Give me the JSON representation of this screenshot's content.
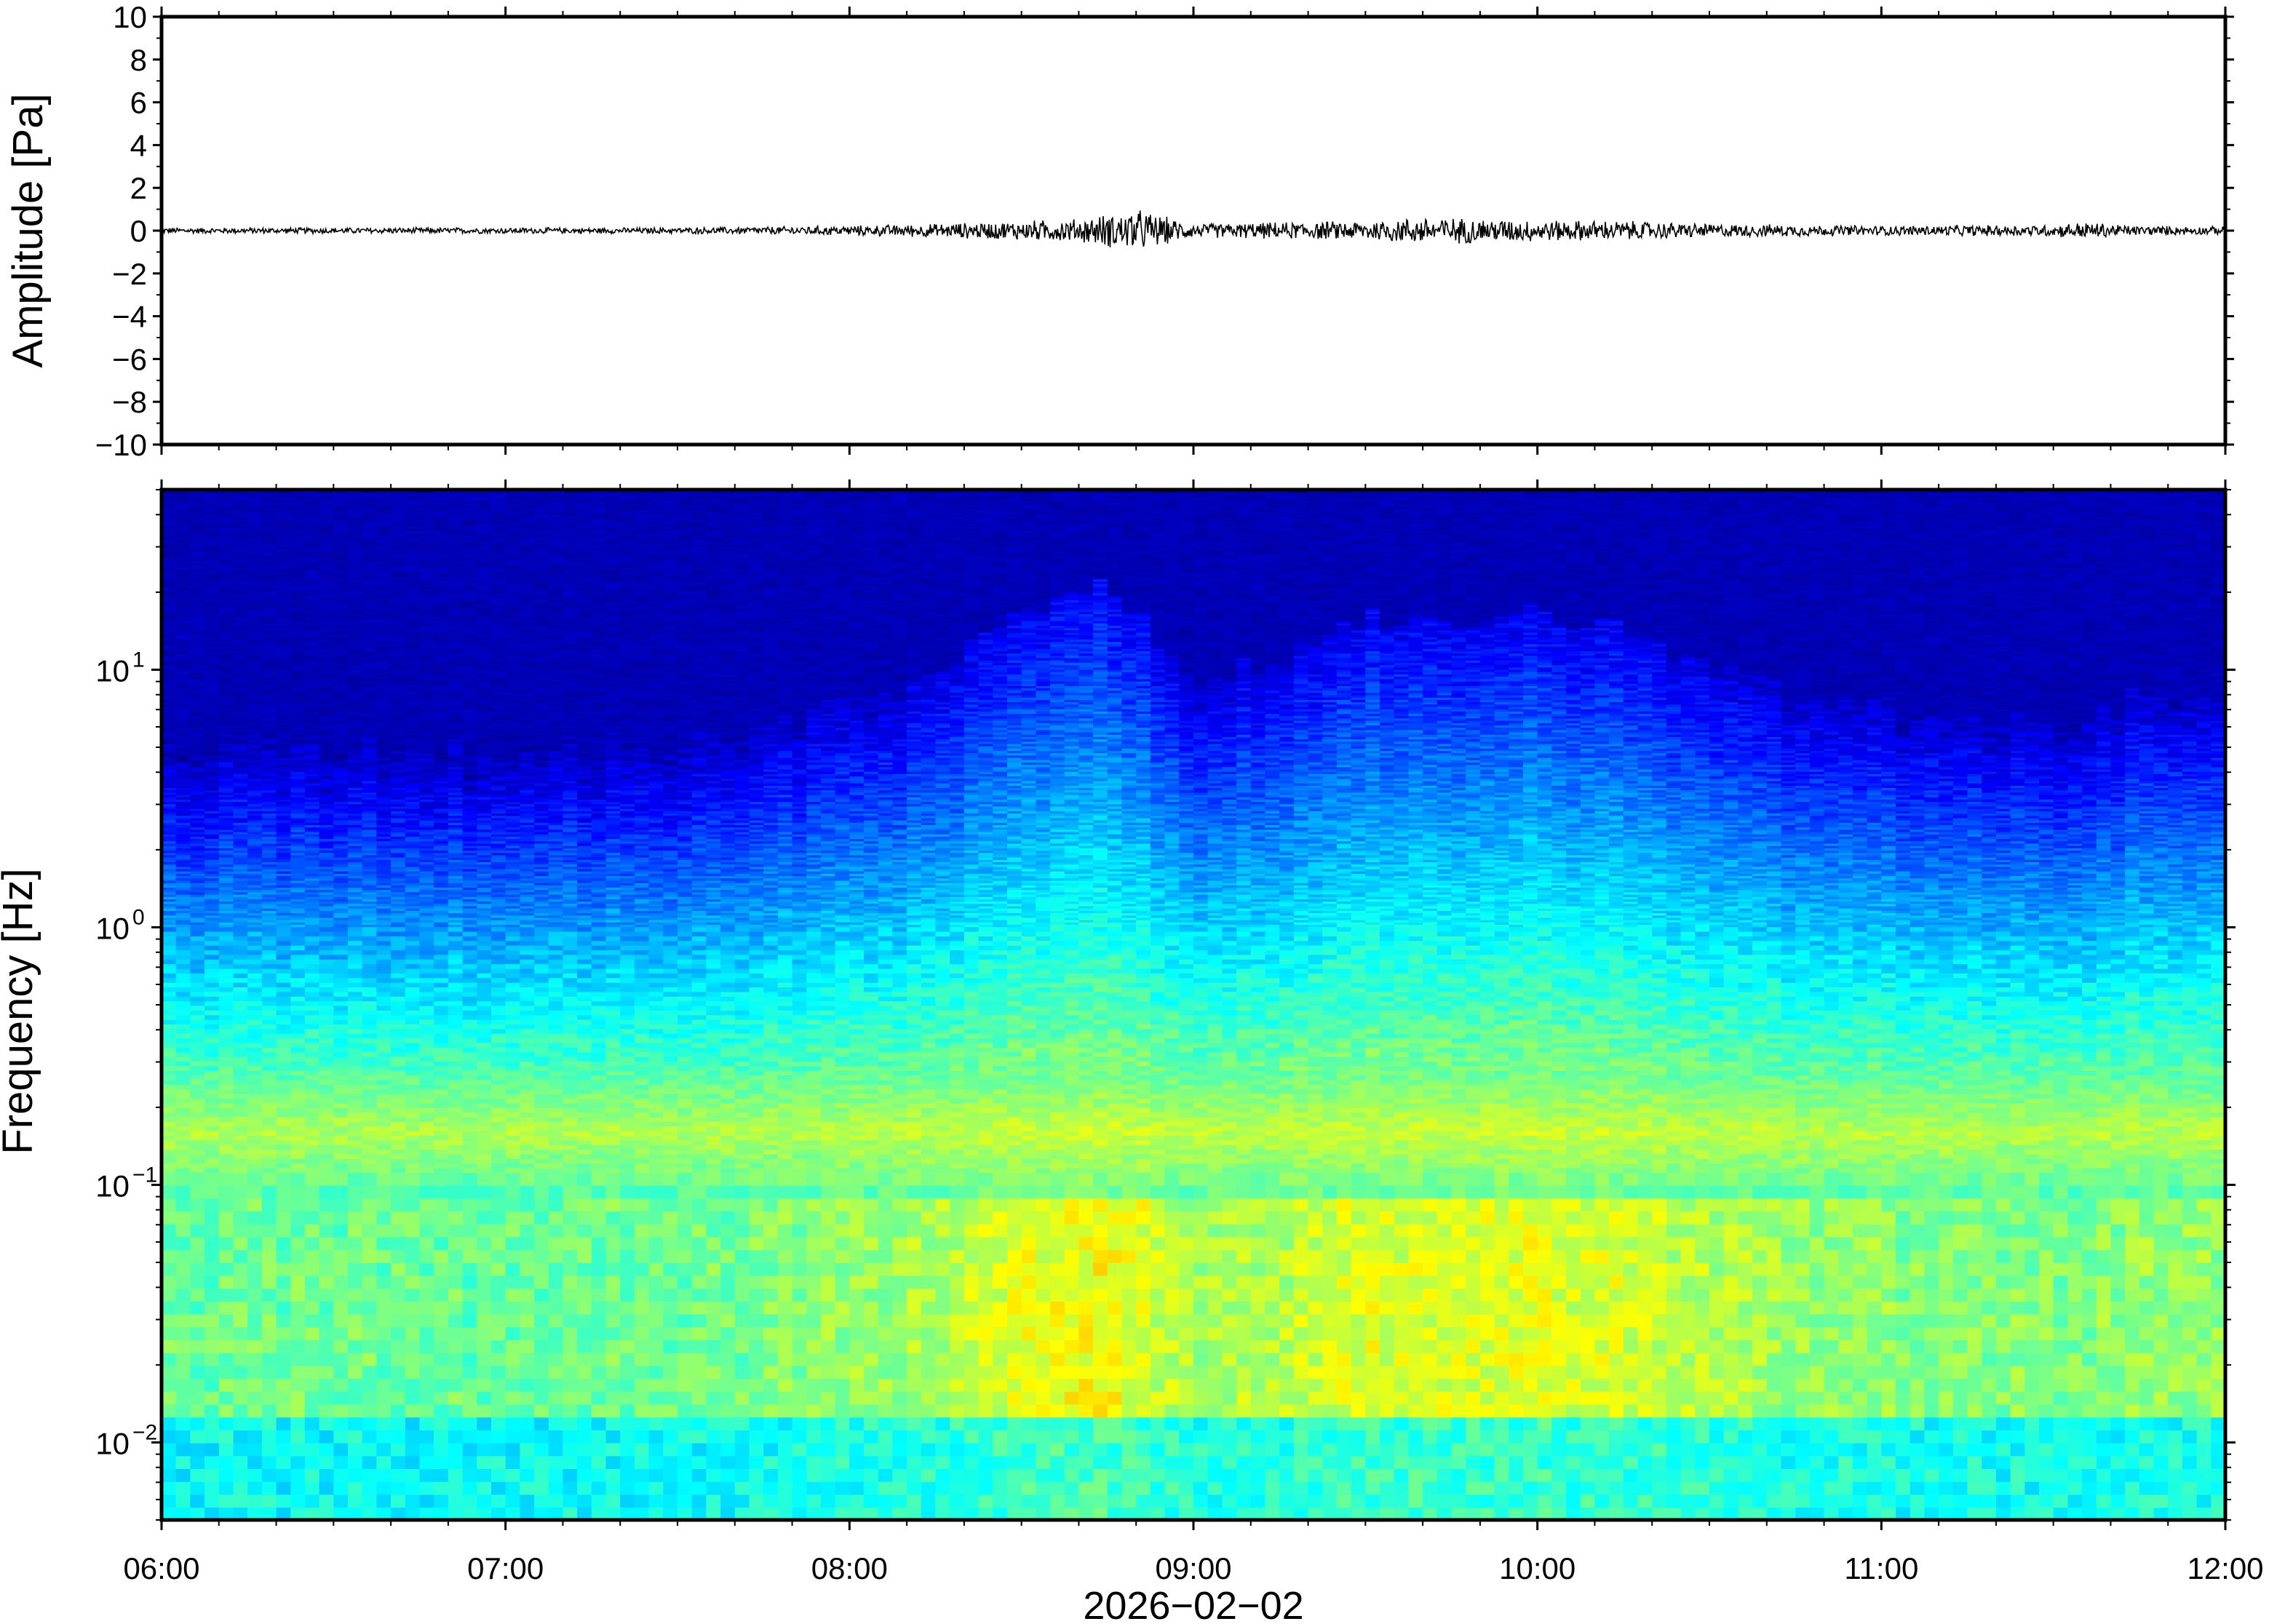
{
  "chart_data": [
    {
      "type": "line",
      "panel": "waveform",
      "ylabel": "Amplitude [Pa]",
      "ylim": [
        -10,
        10
      ],
      "yticks": [
        -10,
        -8,
        -6,
        -4,
        -2,
        0,
        2,
        4,
        6,
        8,
        10
      ],
      "ytick_labels": [
        "−10",
        "−8",
        "−6",
        "−4",
        "−2",
        "0",
        "2",
        "4",
        "6",
        "8",
        "10"
      ],
      "xlim": [
        "06:00",
        "12:00"
      ],
      "grid": false,
      "line_color": "#000000",
      "series": [
        {
          "x": [
            "06:00",
            "06:30",
            "07:00",
            "07:30",
            "08:00",
            "08:15",
            "08:30",
            "08:40",
            "08:50",
            "09:00",
            "09:30",
            "09:40",
            "10:00",
            "10:15",
            "10:30",
            "11:00",
            "11:30",
            "11:35",
            "11:45",
            "12:00"
          ],
          "y_envelope": [
            0.15,
            0.15,
            0.15,
            0.15,
            0.25,
            0.35,
            0.5,
            0.6,
            1.1,
            0.35,
            0.5,
            0.7,
            0.55,
            0.5,
            0.35,
            0.25,
            0.3,
            0.45,
            0.25,
            0.2
          ]
        }
      ]
    },
    {
      "type": "heatmap",
      "panel": "spectrogram",
      "ylabel": "Frequency [Hz]",
      "xlabel": "2026−02−02",
      "yscale": "log",
      "ylim_hz": [
        0.005,
        50
      ],
      "yticks_hz": [
        0.01,
        0.1,
        1,
        10
      ],
      "ytick_labels": [
        {
          "base": "10",
          "exp": "−2"
        },
        {
          "base": "10",
          "exp": "−1"
        },
        {
          "base": "10",
          "exp": "0"
        },
        {
          "base": "10",
          "exp": "1"
        }
      ],
      "xticks": [
        "06:00",
        "07:00",
        "08:00",
        "09:00",
        "10:00",
        "11:00",
        "12:00"
      ],
      "xlim": [
        "06:00",
        "12:00"
      ],
      "colormap": "jet",
      "colormap_stops": [
        "#000080",
        "#0000ff",
        "#0080ff",
        "#00ffff",
        "#80ff80",
        "#ffff00",
        "#ff8000",
        "#ff0000"
      ],
      "activity_profile": {
        "x": [
          "06:00",
          "06:30",
          "07:00",
          "07:30",
          "08:00",
          "08:15",
          "08:30",
          "08:45",
          "09:00",
          "09:15",
          "09:30",
          "09:45",
          "10:00",
          "10:15",
          "10:30",
          "10:45",
          "11:00",
          "11:30",
          "11:45",
          "12:00"
        ],
        "level": [
          0.12,
          0.12,
          0.1,
          0.15,
          0.3,
          0.45,
          0.7,
          0.9,
          0.45,
          0.5,
          0.7,
          0.7,
          0.75,
          0.65,
          0.5,
          0.35,
          0.3,
          0.2,
          0.35,
          0.3
        ]
      },
      "microbarom_band_hz": 0.16
    }
  ]
}
